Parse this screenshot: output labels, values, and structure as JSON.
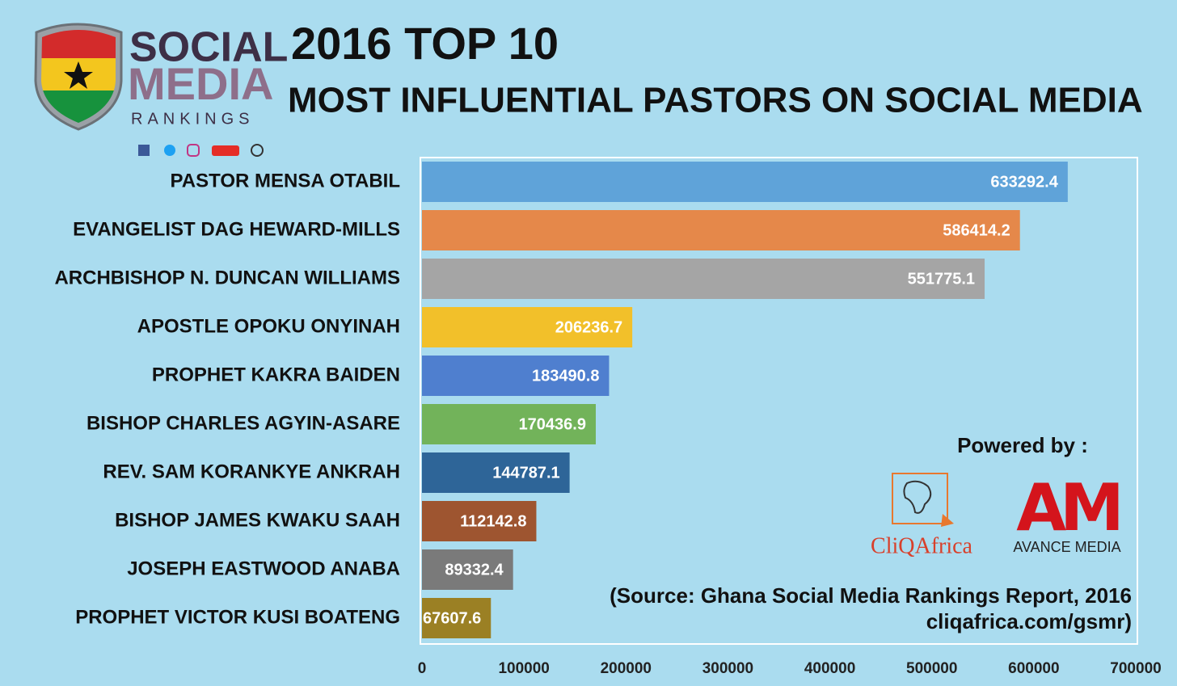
{
  "logo": {
    "line1": "SOCIAL",
    "line2": "MEDIA",
    "line3": "RANKINGS"
  },
  "chart_data": {
    "type": "bar",
    "orientation": "horizontal",
    "title": "2016 TOP 10",
    "subtitle": "MOST INFLUENTIAL PASTORS ON SOCIAL MEDIA",
    "categories": [
      "PASTOR MENSA OTABIL",
      "EVANGELIST DAG HEWARD-MILLS",
      "ARCHBISHOP N. DUNCAN WILLIAMS",
      "APOSTLE OPOKU ONYINAH",
      "PROPHET KAKRA BAIDEN",
      "BISHOP CHARLES AGYIN-ASARE",
      "REV. SAM KORANKYE ANKRAH",
      "BISHOP JAMES KWAKU SAAH",
      "JOSEPH EASTWOOD ANABA",
      "PROPHET VICTOR KUSI BOATENG"
    ],
    "values": [
      633292.4,
      586414.2,
      551775.1,
      206236.7,
      183490.8,
      170436.9,
      144787.1,
      112142.8,
      89332.4,
      67607.6
    ],
    "colors": [
      "#5fa3d9",
      "#e5884a",
      "#a5a5a5",
      "#f2c02a",
      "#4f7fcf",
      "#72b35a",
      "#2e6598",
      "#9e5530",
      "#7a7a7a",
      "#9b8024"
    ],
    "xlim": [
      0,
      700000
    ],
    "xticks": [
      0,
      100000,
      200000,
      300000,
      400000,
      500000,
      600000,
      700000
    ],
    "annotations": [
      "Powered by :",
      "CliQAfrica",
      "AVANCE MEDIA",
      "AM",
      "(Source: Ghana Social Media Rankings Report, 2016",
      "cliqafrica.com/gsmr)"
    ]
  }
}
